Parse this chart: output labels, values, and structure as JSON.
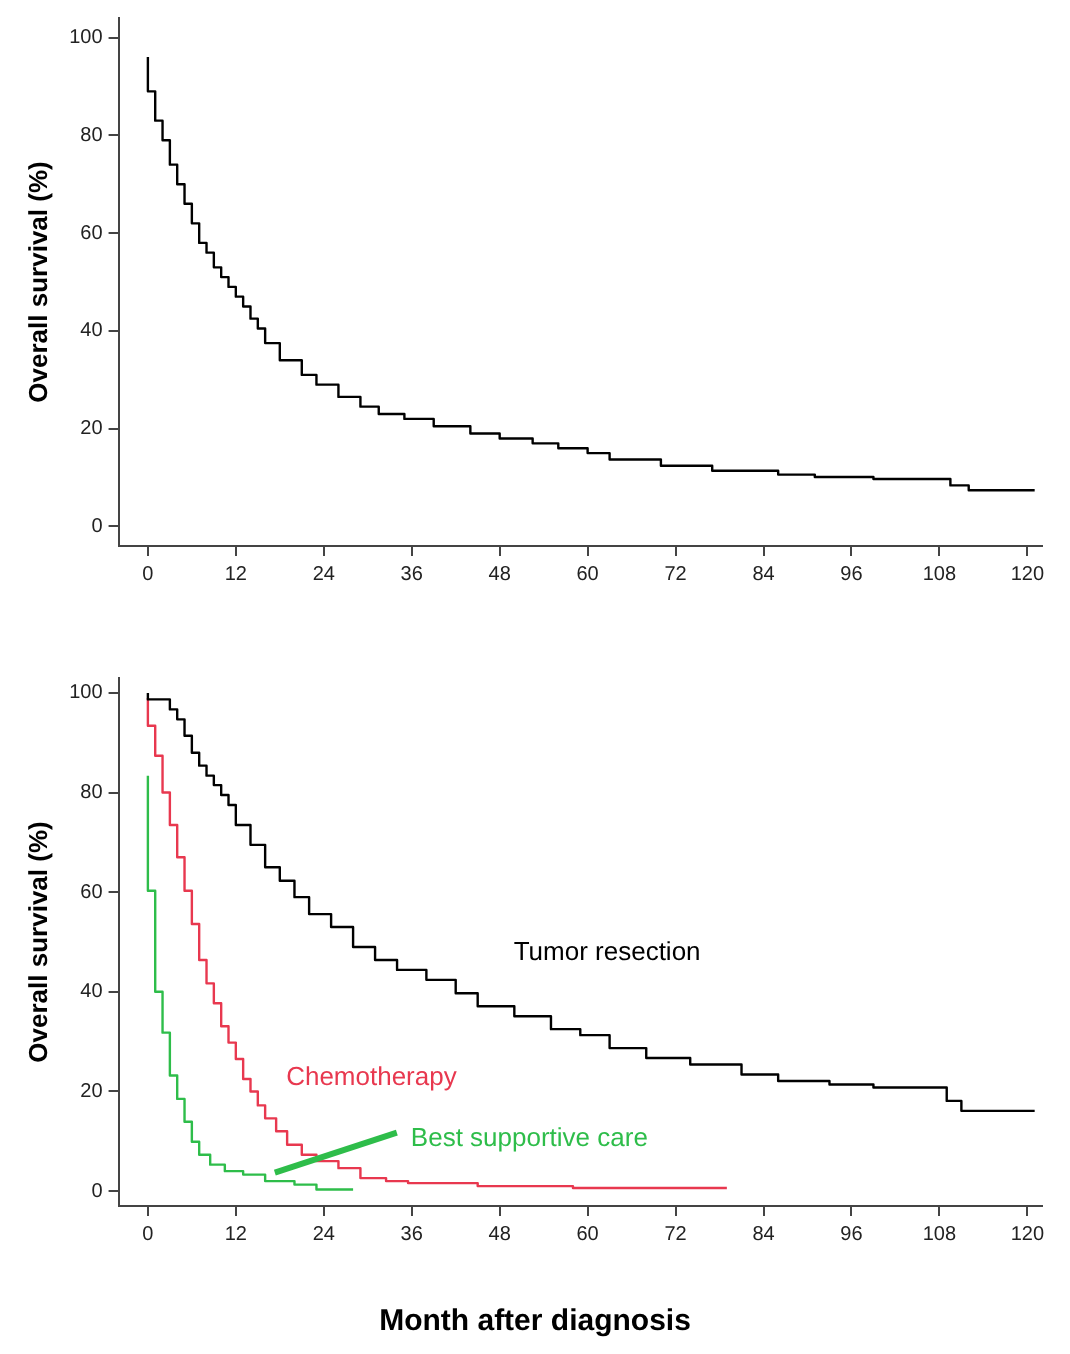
{
  "chart_data": [
    {
      "type": "step",
      "ylabel": "Overall survival (%)",
      "marker": "none",
      "series": [
        {
          "color": "#000000",
          "x": [
            0,
            1,
            2,
            3,
            4,
            5,
            6,
            7,
            8,
            9,
            10,
            11,
            12,
            13,
            14,
            15,
            16,
            18,
            21,
            23,
            26,
            29,
            31.5,
            35,
            39,
            44,
            48,
            52.5,
            56,
            60,
            63,
            70,
            77,
            86,
            91,
            99,
            109.5,
            112,
            116,
            121
          ],
          "values": [
            96,
            89,
            83,
            79,
            74,
            70,
            66,
            62,
            58,
            56,
            53,
            51,
            49,
            47,
            45,
            42.5,
            40.5,
            37.5,
            34,
            31,
            29,
            26.5,
            24.5,
            23,
            22,
            20.5,
            19,
            18,
            17,
            16,
            15,
            13.7,
            12.4,
            11.4,
            10.6,
            10.1,
            9.7,
            8.4,
            7.4,
            7.4
          ]
        }
      ],
      "xlim": [
        -4,
        122
      ],
      "xticks": [
        0,
        12,
        24,
        36,
        48,
        60,
        72,
        84,
        96,
        108,
        120
      ],
      "ylim": [
        -4,
        104
      ],
      "yticks": [
        0,
        20,
        40,
        60,
        80,
        100
      ]
    },
    {
      "type": "step",
      "xlabel": "Month after diagnosis",
      "ylabel": "Overall survival (%)",
      "marker": "none",
      "series": [
        {
          "name": "Tumor resection",
          "color": "#000000",
          "x": [
            0,
            3,
            4,
            5,
            6,
            7,
            8,
            9,
            10,
            11,
            12,
            14,
            16,
            18,
            20,
            22,
            25,
            28,
            31,
            34,
            38,
            42,
            45,
            50,
            55,
            59,
            63,
            68,
            74,
            81,
            86,
            93,
            99,
            109,
            111,
            115,
            121
          ],
          "values": [
            100,
            98.7,
            96.7,
            94.7,
            91.4,
            88,
            85.4,
            83.4,
            81.5,
            79.5,
            77.5,
            73.5,
            69.5,
            65,
            62.3,
            59,
            55.6,
            53,
            49,
            46.4,
            44.4,
            42.4,
            39.7,
            37.1,
            35.1,
            32.5,
            31.3,
            28.7,
            26.7,
            25.4,
            23.4,
            22.1,
            21.4,
            20.8,
            18.1,
            16.1,
            16.1
          ]
        },
        {
          "name": "Chemotherapy",
          "color": "#e8384f",
          "x": [
            0,
            1,
            2,
            3,
            4,
            5,
            6,
            7,
            8,
            9,
            10,
            11,
            12,
            13,
            14,
            15,
            16,
            17.5,
            19,
            21,
            23,
            26,
            29,
            32.5,
            35.5,
            45,
            58,
            74,
            79
          ],
          "values": [
            99,
            93.4,
            87.4,
            80,
            73.5,
            67,
            60.3,
            53.6,
            46.4,
            41.7,
            37.7,
            33.1,
            29.8,
            26.5,
            22.5,
            20,
            17.2,
            14.6,
            12,
            9.3,
            7.3,
            6,
            4.6,
            2.6,
            2,
            1.6,
            1,
            0.6,
            0.6
          ]
        },
        {
          "name": "Best supportive care",
          "color": "#2ebd4a",
          "x": [
            0,
            1,
            2,
            3,
            4,
            5,
            6,
            7,
            8.5,
            10.5,
            13,
            16,
            20,
            23,
            25,
            28
          ],
          "values": [
            83.4,
            60.3,
            40,
            31.8,
            23.2,
            18.5,
            13.9,
            9.9,
            7.3,
            5.3,
            4,
            3.3,
            2,
            1.3,
            0.3,
            0.3
          ]
        }
      ],
      "xlim": [
        -4,
        122
      ],
      "xticks": [
        0,
        12,
        24,
        36,
        48,
        60,
        72,
        84,
        96,
        108,
        120
      ],
      "ylim": [
        -3,
        103
      ],
      "yticks": [
        0,
        20,
        40,
        60,
        80,
        100
      ]
    }
  ]
}
